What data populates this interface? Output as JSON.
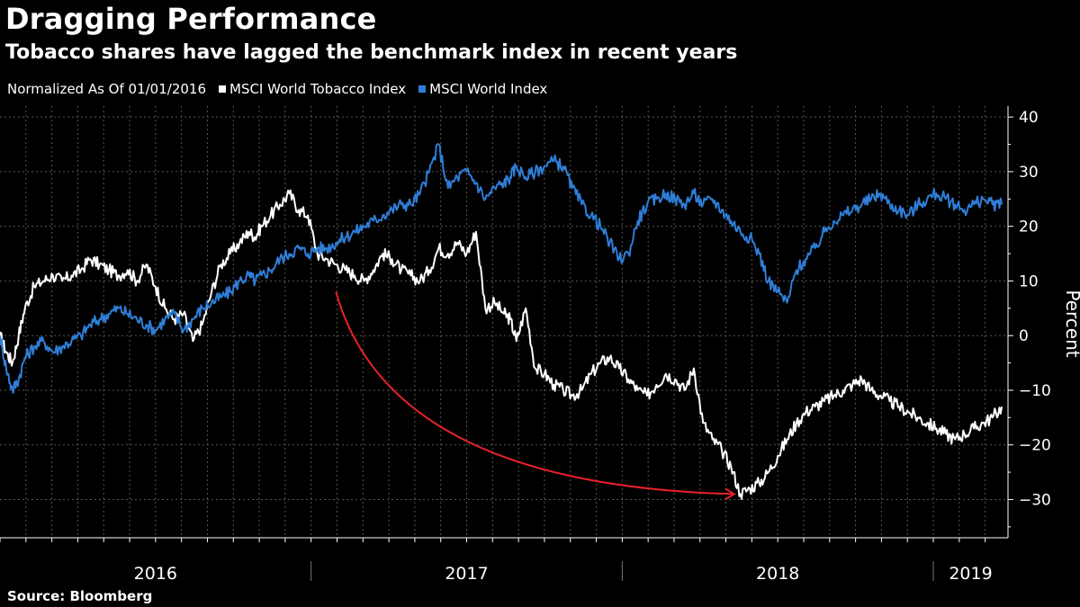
{
  "title": "Dragging Performance",
  "subtitle": "Tobacco shares have lagged the benchmark index in recent years",
  "legend": {
    "note": "Normalized As Of 01/01/2016",
    "series": [
      {
        "label": "MSCI World Tobacco Index",
        "color": "#ffffff"
      },
      {
        "label": "MSCI World Index",
        "color": "#2f7ed8"
      }
    ]
  },
  "source": "Source: Bloomberg",
  "chart_data": {
    "type": "line",
    "ylabel": "Percent",
    "ylim": [
      -37,
      42
    ],
    "yticks": [
      -30,
      -20,
      -10,
      0,
      10,
      20,
      30,
      40
    ],
    "xlim": [
      2016.0,
      2019.24
    ],
    "xticks": [
      "2016",
      "2017",
      "2018",
      "2019"
    ],
    "grid": true,
    "annotation": {
      "type": "arrow",
      "color": "#e8212b",
      "from": [
        2017.08,
        8
      ],
      "to": [
        2018.36,
        -29
      ]
    },
    "series": [
      {
        "name": "MSCI World Tobacco Index",
        "color": "#ffffff",
        "x": [
          2016.0,
          2016.02,
          2016.04,
          2016.06,
          2016.08,
          2016.11,
          2016.14,
          2016.17,
          2016.2,
          2016.23,
          2016.26,
          2016.29,
          2016.32,
          2016.35,
          2016.38,
          2016.41,
          2016.44,
          2016.47,
          2016.5,
          2016.53,
          2016.56,
          2016.59,
          2016.62,
          2016.65,
          2016.68,
          2016.71,
          2016.74,
          2016.77,
          2016.8,
          2016.82,
          2016.84,
          2016.87,
          2016.9,
          2016.93,
          2016.96,
          2016.99,
          2017.02,
          2017.05,
          2017.08,
          2017.11,
          2017.14,
          2017.17,
          2017.2,
          2017.23,
          2017.26,
          2017.29,
          2017.32,
          2017.35,
          2017.38,
          2017.41,
          2017.44,
          2017.47,
          2017.5,
          2017.53,
          2017.56,
          2017.59,
          2017.62,
          2017.64,
          2017.66,
          2017.69,
          2017.72,
          2017.75,
          2017.78,
          2017.81,
          2017.84,
          2017.87,
          2017.9,
          2017.93,
          2017.96,
          2017.99,
          2018.02,
          2018.05,
          2018.08,
          2018.11,
          2018.14,
          2018.17,
          2018.2,
          2018.23,
          2018.26,
          2018.29,
          2018.32,
          2018.35,
          2018.38,
          2018.41,
          2018.44,
          2018.47,
          2018.5,
          2018.53,
          2018.56,
          2018.59,
          2018.62,
          2018.65,
          2018.68,
          2018.71,
          2018.74,
          2018.77,
          2018.8,
          2018.83,
          2018.86,
          2018.89,
          2018.92,
          2018.95,
          2018.98,
          2019.01,
          2019.04,
          2019.07,
          2019.1,
          2019.13,
          2019.16,
          2019.19,
          2019.22
        ],
        "y": [
          0,
          -3,
          -5,
          0,
          5,
          9,
          10,
          11,
          10,
          11,
          12,
          14,
          13,
          12,
          11,
          12,
          10,
          13,
          9,
          5,
          3,
          4,
          -1,
          2,
          8,
          13,
          15,
          17,
          19,
          18,
          20,
          22,
          24,
          26,
          23,
          22,
          15,
          14,
          13,
          12,
          11,
          10,
          12,
          15,
          14,
          12,
          11,
          10,
          12,
          16,
          15,
          17,
          15,
          19,
          5,
          6,
          4,
          3,
          -1,
          5,
          -6,
          -7,
          -9,
          -10,
          -11,
          -10,
          -7,
          -5,
          -4,
          -6,
          -8,
          -10,
          -11,
          -9,
          -7,
          -8,
          -10,
          -6,
          -16,
          -19,
          -21,
          -24,
          -29,
          -28,
          -27,
          -25,
          -22,
          -19,
          -16,
          -14,
          -13,
          -12,
          -11,
          -10,
          -9,
          -8,
          -10,
          -11,
          -12,
          -13,
          -14,
          -15,
          -16,
          -17,
          -18,
          -19,
          -18,
          -17,
          -16,
          -15,
          -13
        ],
        "note": "see script for densified path"
      },
      {
        "name": "MSCI World Index",
        "color": "#2f7ed8",
        "x": [
          2016.0,
          2016.02,
          2016.04,
          2016.06,
          2016.08,
          2016.11,
          2016.14,
          2016.17,
          2016.2,
          2016.23,
          2016.26,
          2016.29,
          2016.32,
          2016.35,
          2016.38,
          2016.41,
          2016.44,
          2016.47,
          2016.5,
          2016.53,
          2016.56,
          2016.59,
          2016.62,
          2016.65,
          2016.68,
          2016.71,
          2016.74,
          2016.77,
          2016.8,
          2016.82,
          2016.84,
          2016.87,
          2016.9,
          2016.93,
          2016.96,
          2016.99,
          2017.02,
          2017.05,
          2017.08,
          2017.11,
          2017.14,
          2017.17,
          2017.2,
          2017.23,
          2017.26,
          2017.29,
          2017.32,
          2017.35,
          2017.38,
          2017.41,
          2017.44,
          2017.47,
          2017.5,
          2017.53,
          2017.56,
          2017.59,
          2017.62,
          2017.64,
          2017.66,
          2017.69,
          2017.72,
          2017.75,
          2017.78,
          2017.81,
          2017.84,
          2017.87,
          2017.9,
          2017.93,
          2017.96,
          2017.99,
          2018.02,
          2018.05,
          2018.08,
          2018.11,
          2018.14,
          2018.17,
          2018.2,
          2018.23,
          2018.26,
          2018.29,
          2018.32,
          2018.35,
          2018.38,
          2018.41,
          2018.44,
          2018.47,
          2018.5,
          2018.53,
          2018.56,
          2018.59,
          2018.62,
          2018.65,
          2018.68,
          2018.71,
          2018.74,
          2018.77,
          2018.8,
          2018.83,
          2018.86,
          2018.89,
          2018.92,
          2018.95,
          2018.98,
          2019.01,
          2019.04,
          2019.07,
          2019.1,
          2019.13,
          2019.16,
          2019.19,
          2019.22
        ],
        "y": [
          0,
          -6,
          -10,
          -8,
          -4,
          -2,
          -1,
          -3,
          -2,
          -1,
          0,
          2,
          3,
          4,
          5,
          4,
          3,
          2,
          1,
          3,
          4,
          1,
          3,
          5,
          6,
          7,
          8,
          10,
          11,
          10,
          11,
          12,
          14,
          15,
          16,
          15,
          16,
          16,
          17,
          18,
          19,
          20,
          21,
          22,
          23,
          24,
          24,
          26,
          30,
          35,
          27,
          29,
          30,
          28,
          25,
          27,
          28,
          29,
          31,
          29,
          30,
          31,
          32,
          31,
          27,
          24,
          22,
          20,
          17,
          14,
          15,
          21,
          24,
          25,
          26,
          25,
          24,
          26,
          24,
          25,
          23,
          21,
          19,
          18,
          15,
          10,
          8,
          6,
          12,
          14,
          16,
          19,
          21,
          22,
          23,
          24,
          25,
          26,
          24,
          23,
          22,
          24,
          25,
          26,
          25,
          24,
          23,
          24,
          25,
          24,
          24
        ],
        "note": "see script for densified path"
      }
    ]
  }
}
